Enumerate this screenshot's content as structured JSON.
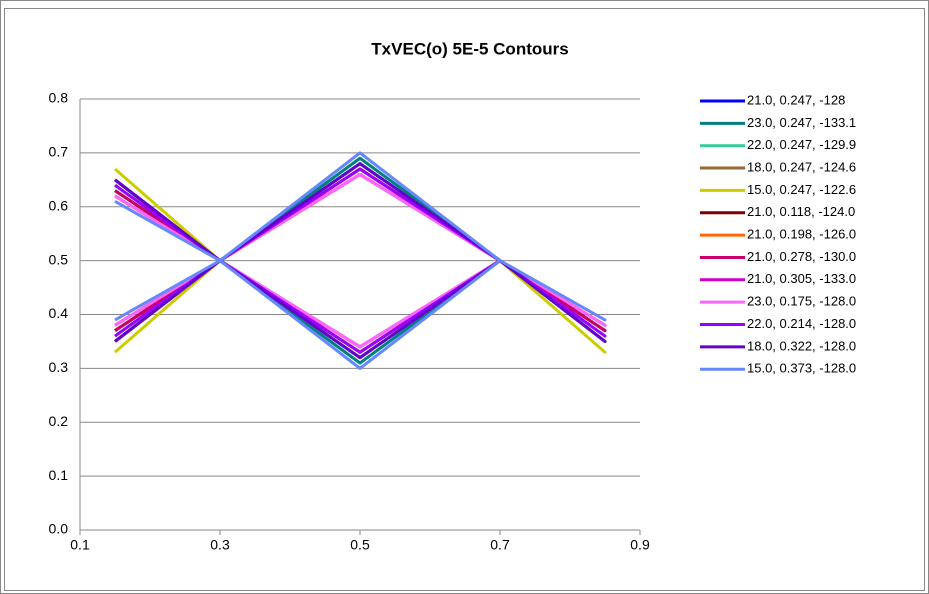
{
  "chart_data": {
    "type": "line",
    "title": "TxVEC(o) 5E-5 Contours",
    "x": [
      0.15,
      0.3,
      0.5,
      0.7,
      0.85,
      0.7,
      0.5,
      0.3,
      0.15
    ],
    "xlim": [
      0.1,
      0.9
    ],
    "xticks": [
      0.1,
      0.3,
      0.5,
      0.7,
      0.9
    ],
    "ylim": [
      0,
      0.8
    ],
    "yticks": [
      {
        "value": 0,
        "label": "0.0"
      },
      0.1,
      0.2,
      0.3,
      0.4,
      0.5,
      0.6,
      0.7,
      0.8
    ],
    "grid": true,
    "legend": "right",
    "series": [
      {
        "name": "21.0, 0.247, -128",
        "color": "#0000ff",
        "values": [
          0.35,
          0.5,
          0.68,
          0.5,
          0.35,
          0.5,
          0.32,
          0.5,
          0.65
        ]
      },
      {
        "name": "23.0, 0.247, -133.1",
        "color": "#008080",
        "values": [
          0.37,
          0.5,
          0.69,
          0.5,
          0.37,
          0.5,
          0.31,
          0.5,
          0.63
        ]
      },
      {
        "name": "22.0, 0.247, -129.9",
        "color": "#33cc99",
        "values": [
          0.36,
          0.5,
          0.68,
          0.5,
          0.36,
          0.5,
          0.32,
          0.5,
          0.64
        ]
      },
      {
        "name": "18.0, 0.247, -124.6",
        "color": "#996633",
        "values": [
          0.35,
          0.5,
          0.67,
          0.5,
          0.35,
          0.5,
          0.33,
          0.5,
          0.65
        ]
      },
      {
        "name": "15.0, 0.247, -122.6",
        "color": "#cccc00",
        "values": [
          0.33,
          0.5,
          0.67,
          0.5,
          0.33,
          0.5,
          0.33,
          0.5,
          0.67
        ]
      },
      {
        "name": "21.0, 0.118, -124.0",
        "color": "#800000",
        "values": [
          0.37,
          0.5,
          0.67,
          0.5,
          0.37,
          0.5,
          0.33,
          0.5,
          0.63
        ]
      },
      {
        "name": "21.0, 0.198, -126.0",
        "color": "#ff6600",
        "values": [
          0.38,
          0.5,
          0.67,
          0.5,
          0.38,
          0.5,
          0.33,
          0.5,
          0.62
        ]
      },
      {
        "name": "21.0, 0.278, -130.0",
        "color": "#cc0066",
        "values": [
          0.37,
          0.5,
          0.66,
          0.5,
          0.37,
          0.5,
          0.34,
          0.5,
          0.63
        ]
      },
      {
        "name": "21.0, 0.305, -133.0",
        "color": "#cc00cc",
        "values": [
          0.38,
          0.5,
          0.66,
          0.5,
          0.38,
          0.5,
          0.34,
          0.5,
          0.62
        ]
      },
      {
        "name": "23.0, 0.175, -128.0",
        "color": "#ff66ff",
        "values": [
          0.38,
          0.5,
          0.66,
          0.5,
          0.38,
          0.5,
          0.34,
          0.5,
          0.62
        ]
      },
      {
        "name": "22.0, 0.214, -128.0",
        "color": "#9900ff",
        "values": [
          0.36,
          0.5,
          0.67,
          0.5,
          0.36,
          0.5,
          0.33,
          0.5,
          0.64
        ]
      },
      {
        "name": "18.0, 0.322, -128.0",
        "color": "#6600cc",
        "values": [
          0.35,
          0.5,
          0.68,
          0.5,
          0.35,
          0.5,
          0.32,
          0.5,
          0.65
        ]
      },
      {
        "name": "15.0, 0.373, -128.0",
        "color": "#6688ff",
        "values": [
          0.39,
          0.5,
          0.7,
          0.5,
          0.39,
          0.5,
          0.3,
          0.5,
          0.61
        ]
      }
    ]
  }
}
